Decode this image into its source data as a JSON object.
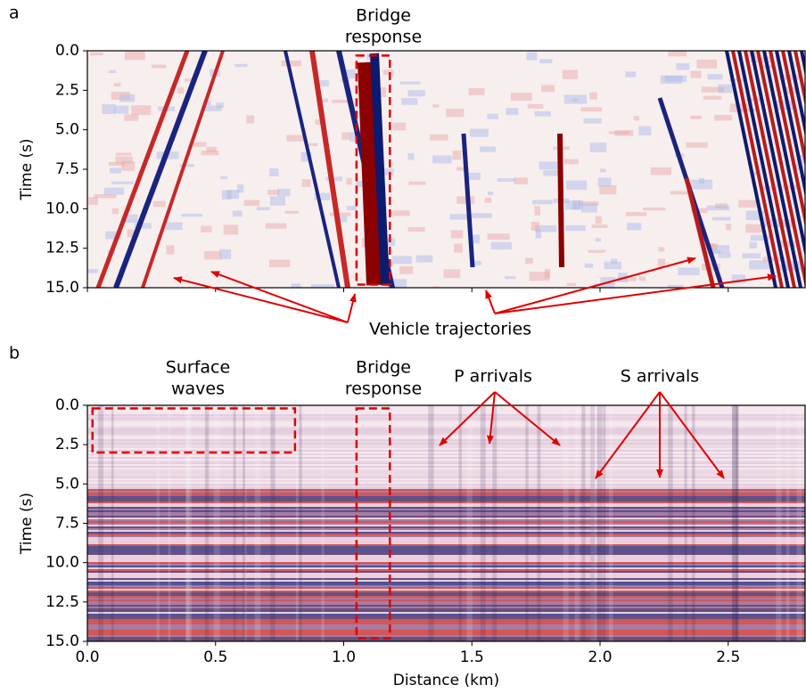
{
  "chart_data": [
    {
      "type": "image",
      "panel_label": "a",
      "ylabel": "Time (s)",
      "y_inverted": true,
      "xlim": [
        0,
        2.8
      ],
      "ylim": [
        0,
        15
      ],
      "show_xtick_labels": false,
      "xticks": [
        {
          "value": 0,
          "label": "0.0"
        },
        {
          "value": 0.5,
          "label": "0.5"
        },
        {
          "value": 1,
          "label": "1.0"
        },
        {
          "value": 1.5,
          "label": "1.5"
        },
        {
          "value": 2,
          "label": "2.0"
        },
        {
          "value": 2.5,
          "label": "2.5"
        }
      ],
      "yticks": [
        {
          "value": 0,
          "label": "0.0"
        },
        {
          "value": 2.5,
          "label": "2.5"
        },
        {
          "value": 5,
          "label": "5.0"
        },
        {
          "value": 7.5,
          "label": "7.5"
        },
        {
          "value": 10,
          "label": "10.0"
        },
        {
          "value": 12.5,
          "label": "12.5"
        },
        {
          "value": 15,
          "label": "15.0"
        }
      ],
      "annotations": [
        {
          "lines": [
            "Bridge",
            "response"
          ]
        },
        {
          "lines": [
            "Vehicle trajectories"
          ]
        }
      ]
    },
    {
      "type": "image",
      "panel_label": "b",
      "ylabel": "Time (s)",
      "xlabel": "Distance (km)",
      "y_inverted": true,
      "xlim": [
        0,
        2.8
      ],
      "ylim": [
        0,
        15
      ],
      "show_xtick_labels": true,
      "xticks": [
        {
          "value": 0,
          "label": "0.0"
        },
        {
          "value": 0.5,
          "label": "0.5"
        },
        {
          "value": 1,
          "label": "1.0"
        },
        {
          "value": 1.5,
          "label": "1.5"
        },
        {
          "value": 2,
          "label": "2.0"
        },
        {
          "value": 2.5,
          "label": "2.5"
        }
      ],
      "yticks": [
        {
          "value": 0,
          "label": "0.0"
        },
        {
          "value": 2.5,
          "label": "2.5"
        },
        {
          "value": 5,
          "label": "5.0"
        },
        {
          "value": 7.5,
          "label": "7.5"
        },
        {
          "value": 10,
          "label": "10.0"
        },
        {
          "value": 12.5,
          "label": "12.5"
        },
        {
          "value": 15,
          "label": "15.0"
        }
      ],
      "annotations": [
        {
          "lines": [
            "Surface",
            "waves"
          ]
        },
        {
          "lines": [
            "Bridge",
            "response"
          ]
        },
        {
          "lines": [
            "P arrivals"
          ]
        },
        {
          "lines": [
            "S arrivals"
          ]
        }
      ]
    }
  ]
}
